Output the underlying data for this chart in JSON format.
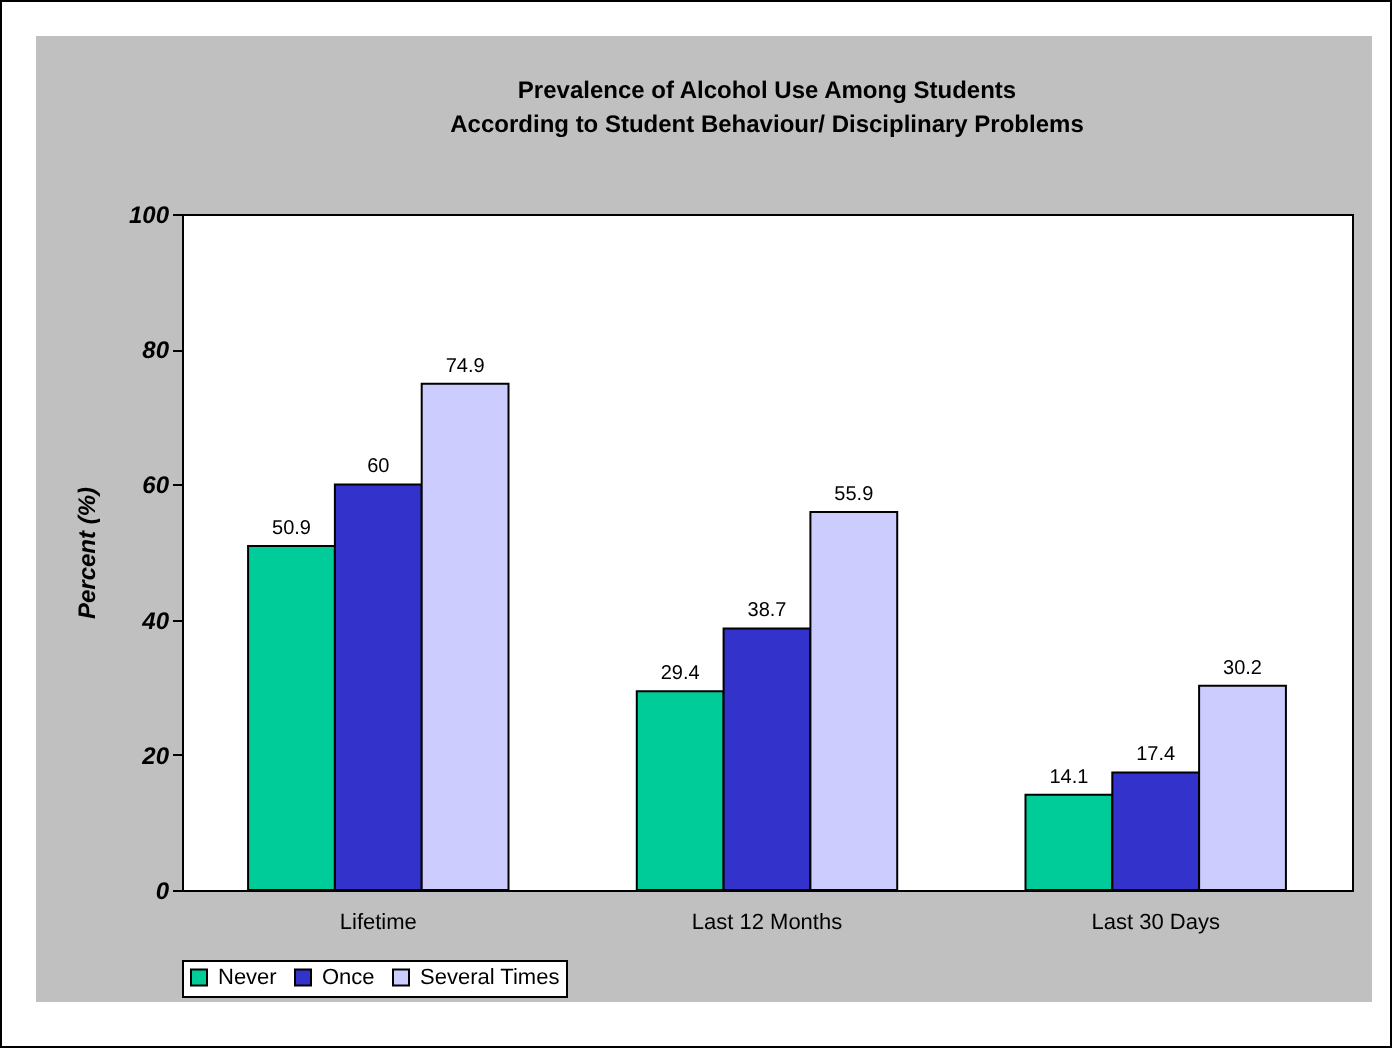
{
  "chart_data": {
    "type": "bar",
    "title": "Prevalence of Alcohol Use Among Students\nAccording to Student Behaviour/ Disciplinary Problems",
    "ylabel": "Percent (%)",
    "categories": [
      "Lifetime",
      "Last 12 Months",
      "Last 30 Days"
    ],
    "series": [
      {
        "name": "Never",
        "color": "#00cc99",
        "values": [
          50.9,
          29.4,
          14.1
        ]
      },
      {
        "name": "Once",
        "color": "#3333cc",
        "values": [
          60,
          38.7,
          17.4
        ]
      },
      {
        "name": "Several Times",
        "color": "#ccccff",
        "values": [
          74.9,
          55.9,
          30.2
        ]
      }
    ],
    "ylim": [
      0,
      100
    ],
    "yticks": [
      0,
      20,
      40,
      60,
      80,
      100
    ],
    "data_labels": true,
    "grid": false,
    "legend": "bottom"
  }
}
